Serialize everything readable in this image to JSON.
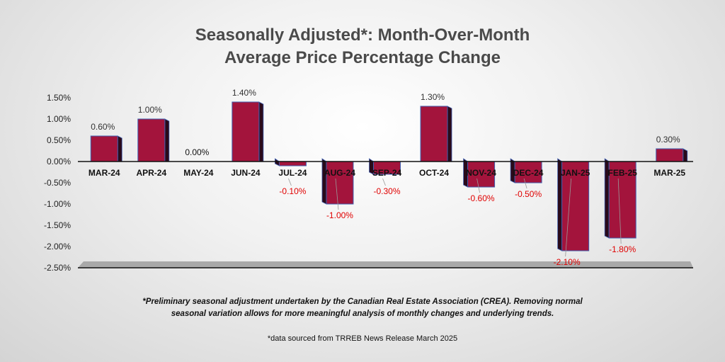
{
  "title_line1": "Seasonally Adjusted*:  Month-Over-Month",
  "title_line2": "Average Price Percentage Change",
  "footnote_line1": "*Preliminary seasonal adjustment undertaken by the Canadian Real Estate Association (CREA).  Removing normal",
  "footnote_line2": "seasonal variation allows for more meaningful analysis of monthly changes and underlying trends.",
  "source_note": "*data sourced from TRREB News Release March 2025",
  "colors": {
    "bar": "#a3143c",
    "bar_side": "#2a0a1a",
    "bar_edge": "#3f5fb0",
    "negative_label": "#e00000",
    "positive_label": "#333333"
  },
  "chart_data": {
    "type": "bar",
    "title": "Seasonally Adjusted*:  Month-Over-Month Average Price Percentage Change",
    "categories": [
      "MAR-24",
      "APR-24",
      "MAY-24",
      "JUN-24",
      "JUL-24",
      "AUG-24",
      "SEP-24",
      "OCT-24",
      "NOV-24",
      "DEC-24",
      "JAN-25",
      "FEB-25",
      "MAR-25"
    ],
    "values": [
      0.6,
      1.0,
      0.0,
      1.4,
      -0.1,
      -1.0,
      -0.3,
      1.3,
      -0.6,
      -0.5,
      -2.1,
      -1.8,
      0.3
    ],
    "data_labels": [
      "0.60%",
      "1.00%",
      "0.00%",
      "1.40%",
      "-0.10%",
      "-1.00%",
      "-0.30%",
      "1.30%",
      "-0.60%",
      "-0.50%",
      "-2.10%",
      "-1.80%",
      "0.30%"
    ],
    "yticks": [
      1.5,
      1.0,
      0.5,
      0.0,
      -0.5,
      -1.0,
      -1.5,
      -2.0,
      -2.5
    ],
    "ytick_labels": [
      "1.50%",
      "1.00%",
      "0.50%",
      "0.00%",
      "-0.50%",
      "-1.00%",
      "-1.50%",
      "-2.00%",
      "-2.50%"
    ],
    "ylim": [
      -2.5,
      1.5
    ],
    "xlabel": "",
    "ylabel": "",
    "grid": false,
    "legend": false
  }
}
